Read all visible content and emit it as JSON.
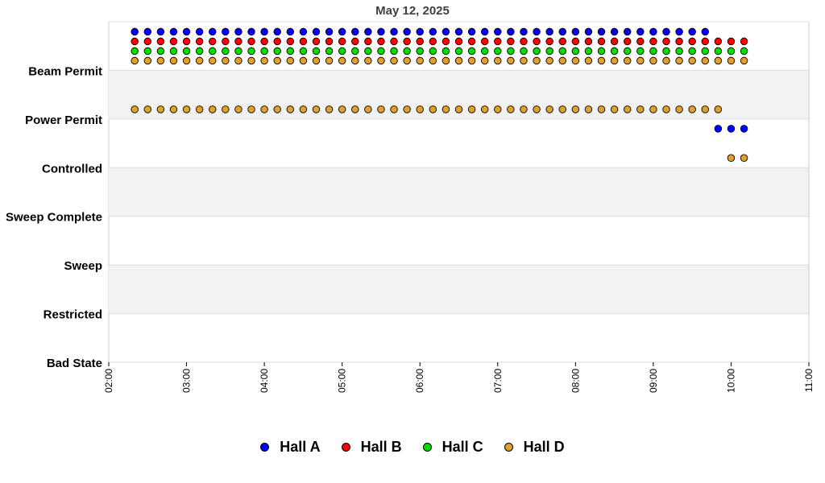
{
  "chart_data": {
    "type": "scatter",
    "title": "May 12, 2025",
    "xlabel": "",
    "ylabel": "",
    "x_range": [
      "02:00",
      "11:00"
    ],
    "x_ticks": [
      "02:00",
      "03:00",
      "04:00",
      "05:00",
      "06:00",
      "07:00",
      "08:00",
      "09:00",
      "10:00",
      "11:00"
    ],
    "y_categories": [
      "Bad State",
      "Restricted",
      "Sweep",
      "Sweep Complete",
      "Controlled",
      "Power Permit",
      "Beam Permit"
    ],
    "grid": "horizontal bands",
    "legend_position": "bottom",
    "series": [
      {
        "name": "Hall A",
        "color": "#0000ff",
        "points": [
          {
            "x_start": "02:20",
            "x_end": "09:40",
            "step_min": 10,
            "y": "Beam Permit"
          },
          {
            "x_start": "09:50",
            "x_end": "10:10",
            "step_min": 10,
            "y": "Power Permit"
          }
        ]
      },
      {
        "name": "Hall B",
        "color": "#ff0000",
        "points": [
          {
            "x_start": "02:20",
            "x_end": "10:10",
            "step_min": 10,
            "y": "Beam Permit"
          }
        ]
      },
      {
        "name": "Hall C",
        "color": "#00dd00",
        "points": [
          {
            "x_start": "02:20",
            "x_end": "10:10",
            "step_min": 10,
            "y": "Beam Permit"
          }
        ]
      },
      {
        "name": "Hall D",
        "color": "#e0a030",
        "points": [
          {
            "x_start": "02:20",
            "x_end": "10:10",
            "step_min": 10,
            "y": "Beam Permit"
          },
          {
            "x_start": "02:20",
            "x_end": "09:50",
            "step_min": 10,
            "y": "Power Permit"
          },
          {
            "x_start": "10:00",
            "x_end": "10:10",
            "step_min": 10,
            "y": "Controlled"
          }
        ]
      }
    ]
  }
}
